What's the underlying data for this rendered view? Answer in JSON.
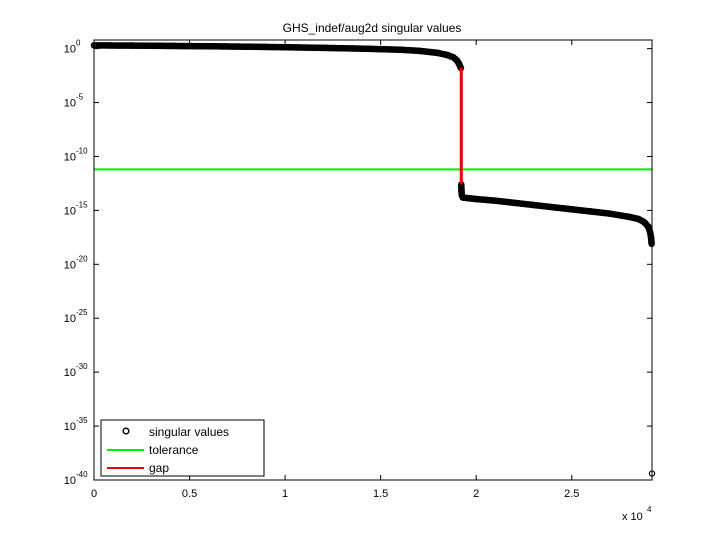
{
  "chart_data": {
    "type": "line",
    "title": "GHS_indef/aug2d singular values",
    "xlabel": "",
    "ylabel": "",
    "x_multiplier_label": {
      "base": "x 10",
      "exponent": "4"
    },
    "x_ticks": [
      0,
      0.5,
      1,
      1.5,
      2,
      2.5
    ],
    "x_tick_labels": [
      "0",
      "0.5",
      "1",
      "1.5",
      "2",
      "2.5"
    ],
    "xlim": [
      0,
      2.92
    ],
    "y_scale": "log",
    "y_ticks": [
      0,
      -5,
      -10,
      -15,
      -20,
      -25,
      -30,
      -35,
      -40
    ],
    "y_tick_labels": [
      {
        "base": "10",
        "exp": "0"
      },
      {
        "base": "10",
        "exp": "-5"
      },
      {
        "base": "10",
        "exp": "-10"
      },
      {
        "base": "10",
        "exp": "-15"
      },
      {
        "base": "10",
        "exp": "-20"
      },
      {
        "base": "10",
        "exp": "-25"
      },
      {
        "base": "10",
        "exp": "-30"
      },
      {
        "base": "10",
        "exp": "-35"
      },
      {
        "base": "10",
        "exp": "-40"
      }
    ],
    "ylim_log10": [
      -40,
      0.8
    ],
    "grid": false,
    "legend_placement": "bottom-left",
    "series": [
      {
        "name": "singular values",
        "style": "circle-markers",
        "color": "#000000",
        "x": [
          0,
          0.2,
          0.4,
          0.6,
          0.8,
          1.0,
          1.2,
          1.4,
          1.6,
          1.7,
          1.8,
          1.85,
          1.88,
          1.9,
          1.91,
          1.92,
          1.922,
          1.923,
          1.925,
          1.93,
          1.95,
          2.0,
          2.1,
          2.2,
          2.3,
          2.4,
          2.5,
          2.6,
          2.7,
          2.8,
          2.85,
          2.88,
          2.9,
          2.91,
          2.915,
          2.918,
          2.92
        ],
        "log10_y": [
          0.3,
          0.28,
          0.25,
          0.22,
          0.18,
          0.13,
          0.07,
          0.0,
          -0.1,
          -0.2,
          -0.4,
          -0.6,
          -0.8,
          -1.1,
          -1.4,
          -1.8,
          -12.6,
          -13.2,
          -13.6,
          -13.8,
          -13.85,
          -13.95,
          -14.1,
          -14.3,
          -14.5,
          -14.7,
          -14.9,
          -15.1,
          -15.3,
          -15.6,
          -15.8,
          -16.1,
          -16.5,
          -17.0,
          -17.5,
          -18.1,
          -39.4
        ]
      },
      {
        "name": "tolerance",
        "style": "line",
        "color": "#00ee00",
        "x": [
          0,
          2.92
        ],
        "log10_y": [
          -11.2,
          -11.2
        ]
      },
      {
        "name": "gap",
        "style": "line",
        "color": "#ee0000",
        "x": [
          1.922,
          1.922
        ],
        "log10_y": [
          -1.8,
          -12.6
        ]
      }
    ]
  }
}
